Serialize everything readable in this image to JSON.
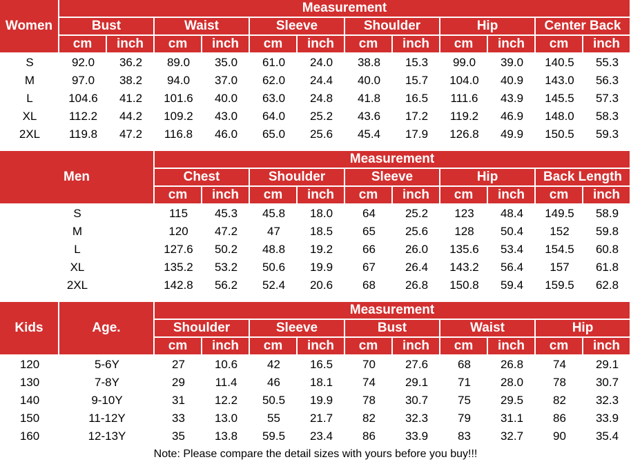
{
  "tables": [
    {
      "row_headers": [
        "Women"
      ],
      "group": "Measurement",
      "measures": [
        "Bust",
        "Waist",
        "Sleeve",
        "Shoulder",
        "Hip",
        "Center Back"
      ],
      "units": [
        "cm",
        "inch"
      ],
      "rows": [
        {
          "labels": [
            "S"
          ],
          "values": [
            "92.0",
            "36.2",
            "89.0",
            "35.0",
            "61.0",
            "24.0",
            "38.8",
            "15.3",
            "99.0",
            "39.0",
            "140.5",
            "55.3"
          ]
        },
        {
          "labels": [
            "M"
          ],
          "values": [
            "97.0",
            "38.2",
            "94.0",
            "37.0",
            "62.0",
            "24.4",
            "40.0",
            "15.7",
            "104.0",
            "40.9",
            "143.0",
            "56.3"
          ]
        },
        {
          "labels": [
            "L"
          ],
          "values": [
            "104.6",
            "41.2",
            "101.6",
            "40.0",
            "63.0",
            "24.8",
            "41.8",
            "16.5",
            "111.6",
            "43.9",
            "145.5",
            "57.3"
          ]
        },
        {
          "labels": [
            "XL"
          ],
          "values": [
            "112.2",
            "44.2",
            "109.2",
            "43.0",
            "64.0",
            "25.2",
            "43.6",
            "17.2",
            "119.2",
            "46.9",
            "148.0",
            "58.3"
          ]
        },
        {
          "labels": [
            "2XL"
          ],
          "values": [
            "119.8",
            "47.2",
            "116.8",
            "46.0",
            "65.0",
            "25.6",
            "45.4",
            "17.9",
            "126.8",
            "49.9",
            "150.5",
            "59.3"
          ]
        }
      ]
    },
    {
      "row_headers": [
        "Men"
      ],
      "group": "Measurement",
      "measures": [
        "Chest",
        "Shoulder",
        "Sleeve",
        "Hip",
        "Back Length"
      ],
      "units": [
        "cm",
        "inch"
      ],
      "rows": [
        {
          "labels": [
            "S"
          ],
          "values": [
            "115",
            "45.3",
            "45.8",
            "18.0",
            "64",
            "25.2",
            "123",
            "48.4",
            "149.5",
            "58.9"
          ]
        },
        {
          "labels": [
            "M"
          ],
          "values": [
            "120",
            "47.2",
            "47",
            "18.5",
            "65",
            "25.6",
            "128",
            "50.4",
            "152",
            "59.8"
          ]
        },
        {
          "labels": [
            "L"
          ],
          "values": [
            "127.6",
            "50.2",
            "48.8",
            "19.2",
            "66",
            "26.0",
            "135.6",
            "53.4",
            "154.5",
            "60.8"
          ]
        },
        {
          "labels": [
            "XL"
          ],
          "values": [
            "135.2",
            "53.2",
            "50.6",
            "19.9",
            "67",
            "26.4",
            "143.2",
            "56.4",
            "157",
            "61.8"
          ]
        },
        {
          "labels": [
            "2XL"
          ],
          "values": [
            "142.8",
            "56.2",
            "52.4",
            "20.6",
            "68",
            "26.8",
            "150.8",
            "59.4",
            "159.5",
            "62.8"
          ]
        }
      ]
    },
    {
      "row_headers": [
        "Kids",
        "Age."
      ],
      "group": "Measurement",
      "measures": [
        "Shoulder",
        "Sleeve",
        "Bust",
        "Waist",
        "Hip"
      ],
      "units": [
        "cm",
        "inch"
      ],
      "rows": [
        {
          "labels": [
            "120",
            "5-6Y"
          ],
          "values": [
            "27",
            "10.6",
            "42",
            "16.5",
            "70",
            "27.6",
            "68",
            "26.8",
            "74",
            "29.1"
          ]
        },
        {
          "labels": [
            "130",
            "7-8Y"
          ],
          "values": [
            "29",
            "11.4",
            "46",
            "18.1",
            "74",
            "29.1",
            "71",
            "28.0",
            "78",
            "30.7"
          ]
        },
        {
          "labels": [
            "140",
            "9-10Y"
          ],
          "values": [
            "31",
            "12.2",
            "50.5",
            "19.9",
            "78",
            "30.7",
            "75",
            "29.5",
            "82",
            "32.3"
          ]
        },
        {
          "labels": [
            "150",
            "11-12Y"
          ],
          "values": [
            "33",
            "13.0",
            "55",
            "21.7",
            "82",
            "32.3",
            "79",
            "31.1",
            "86",
            "33.9"
          ]
        },
        {
          "labels": [
            "160",
            "12-13Y"
          ],
          "values": [
            "35",
            "13.8",
            "59.5",
            "23.4",
            "86",
            "33.9",
            "83",
            "32.7",
            "90",
            "35.4"
          ]
        }
      ]
    }
  ],
  "note": "Note: Please compare the detail sizes with yours before you buy!!!"
}
